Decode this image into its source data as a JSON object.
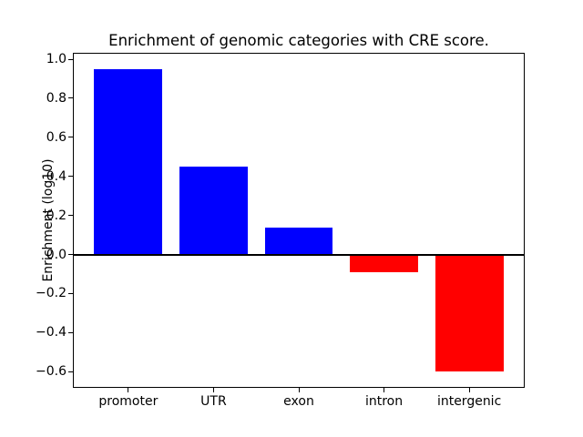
{
  "chart_data": {
    "type": "bar",
    "title": "Enrichment of genomic categories with CRE score.",
    "xlabel": "",
    "ylabel": "Enrichment (log10)",
    "categories": [
      "promoter",
      "UTR",
      "exon",
      "intron",
      "intergenic"
    ],
    "values": [
      0.95,
      0.45,
      0.14,
      -0.09,
      -0.6
    ],
    "positive_color": "#0000ff",
    "negative_color": "#ff0000",
    "axis_color": "#000000",
    "background_color": "#ffffff",
    "bar_width": 0.8,
    "xlim": [
      -0.64,
      4.64
    ],
    "ylim": [
      -0.678,
      1.028
    ],
    "yticks": [
      1.0,
      0.8,
      0.6,
      0.4,
      0.2,
      0.0,
      -0.2,
      -0.4,
      -0.6
    ],
    "ytick_labels": [
      "1.0",
      "0.8",
      "0.6",
      "0.4",
      "0.2",
      "0.0",
      "−0.2",
      "−0.4",
      "−0.6"
    ],
    "zero_line": true,
    "grid": false,
    "legend": null
  }
}
